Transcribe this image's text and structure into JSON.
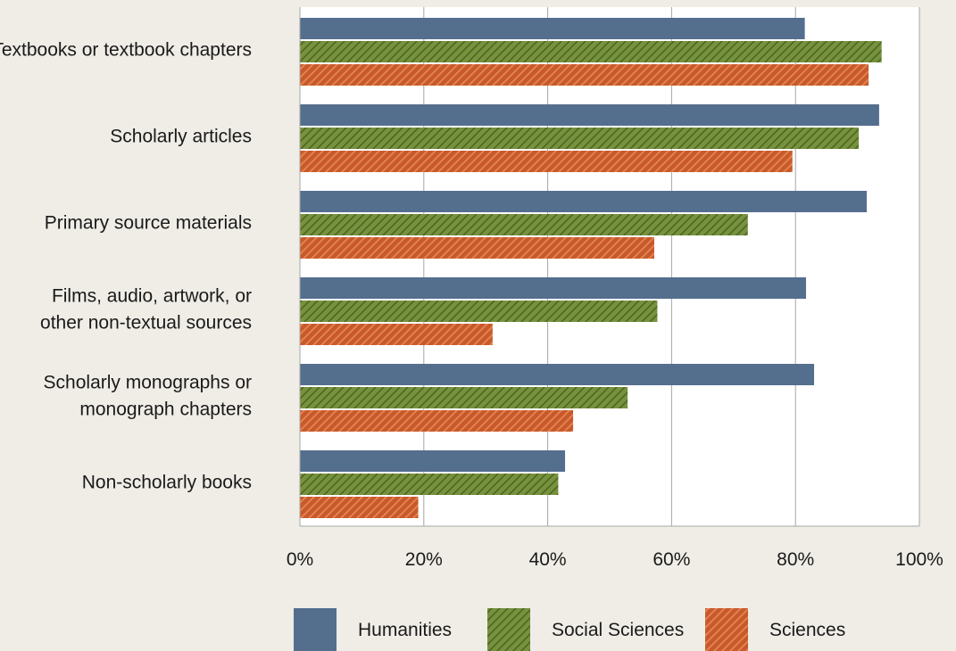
{
  "chart_data": {
    "type": "bar",
    "orientation": "horizontal",
    "categories": [
      [
        "Textbooks or textbook chapters"
      ],
      [
        "Scholarly articles"
      ],
      [
        "Primary source materials"
      ],
      [
        "Films, audio, artwork, or",
        "other non-textual sources"
      ],
      [
        "Scholarly monographs or",
        "monograph chapters"
      ],
      [
        "Non-scholarly books"
      ]
    ],
    "series": [
      {
        "name": "Humanities",
        "color": "#546e8e",
        "pattern": "solid",
        "values": [
          81.5,
          93.5,
          91.5,
          81.7,
          83.0,
          42.8
        ]
      },
      {
        "name": "Social Sciences",
        "color": "#77923d",
        "pattern": "diagonal-hatch",
        "values": [
          93.9,
          90.2,
          72.3,
          57.7,
          52.9,
          41.7
        ]
      },
      {
        "name": "Sciences",
        "color": "#c9592b",
        "pattern": "diagonal-hatch",
        "values": [
          91.8,
          79.5,
          57.2,
          31.1,
          44.1,
          19.1
        ]
      }
    ],
    "xlim": [
      0,
      100
    ],
    "xticks": [
      "0%",
      "20%",
      "40%",
      "60%",
      "80%",
      "100%"
    ],
    "grid": true,
    "legend_position": "bottom"
  }
}
